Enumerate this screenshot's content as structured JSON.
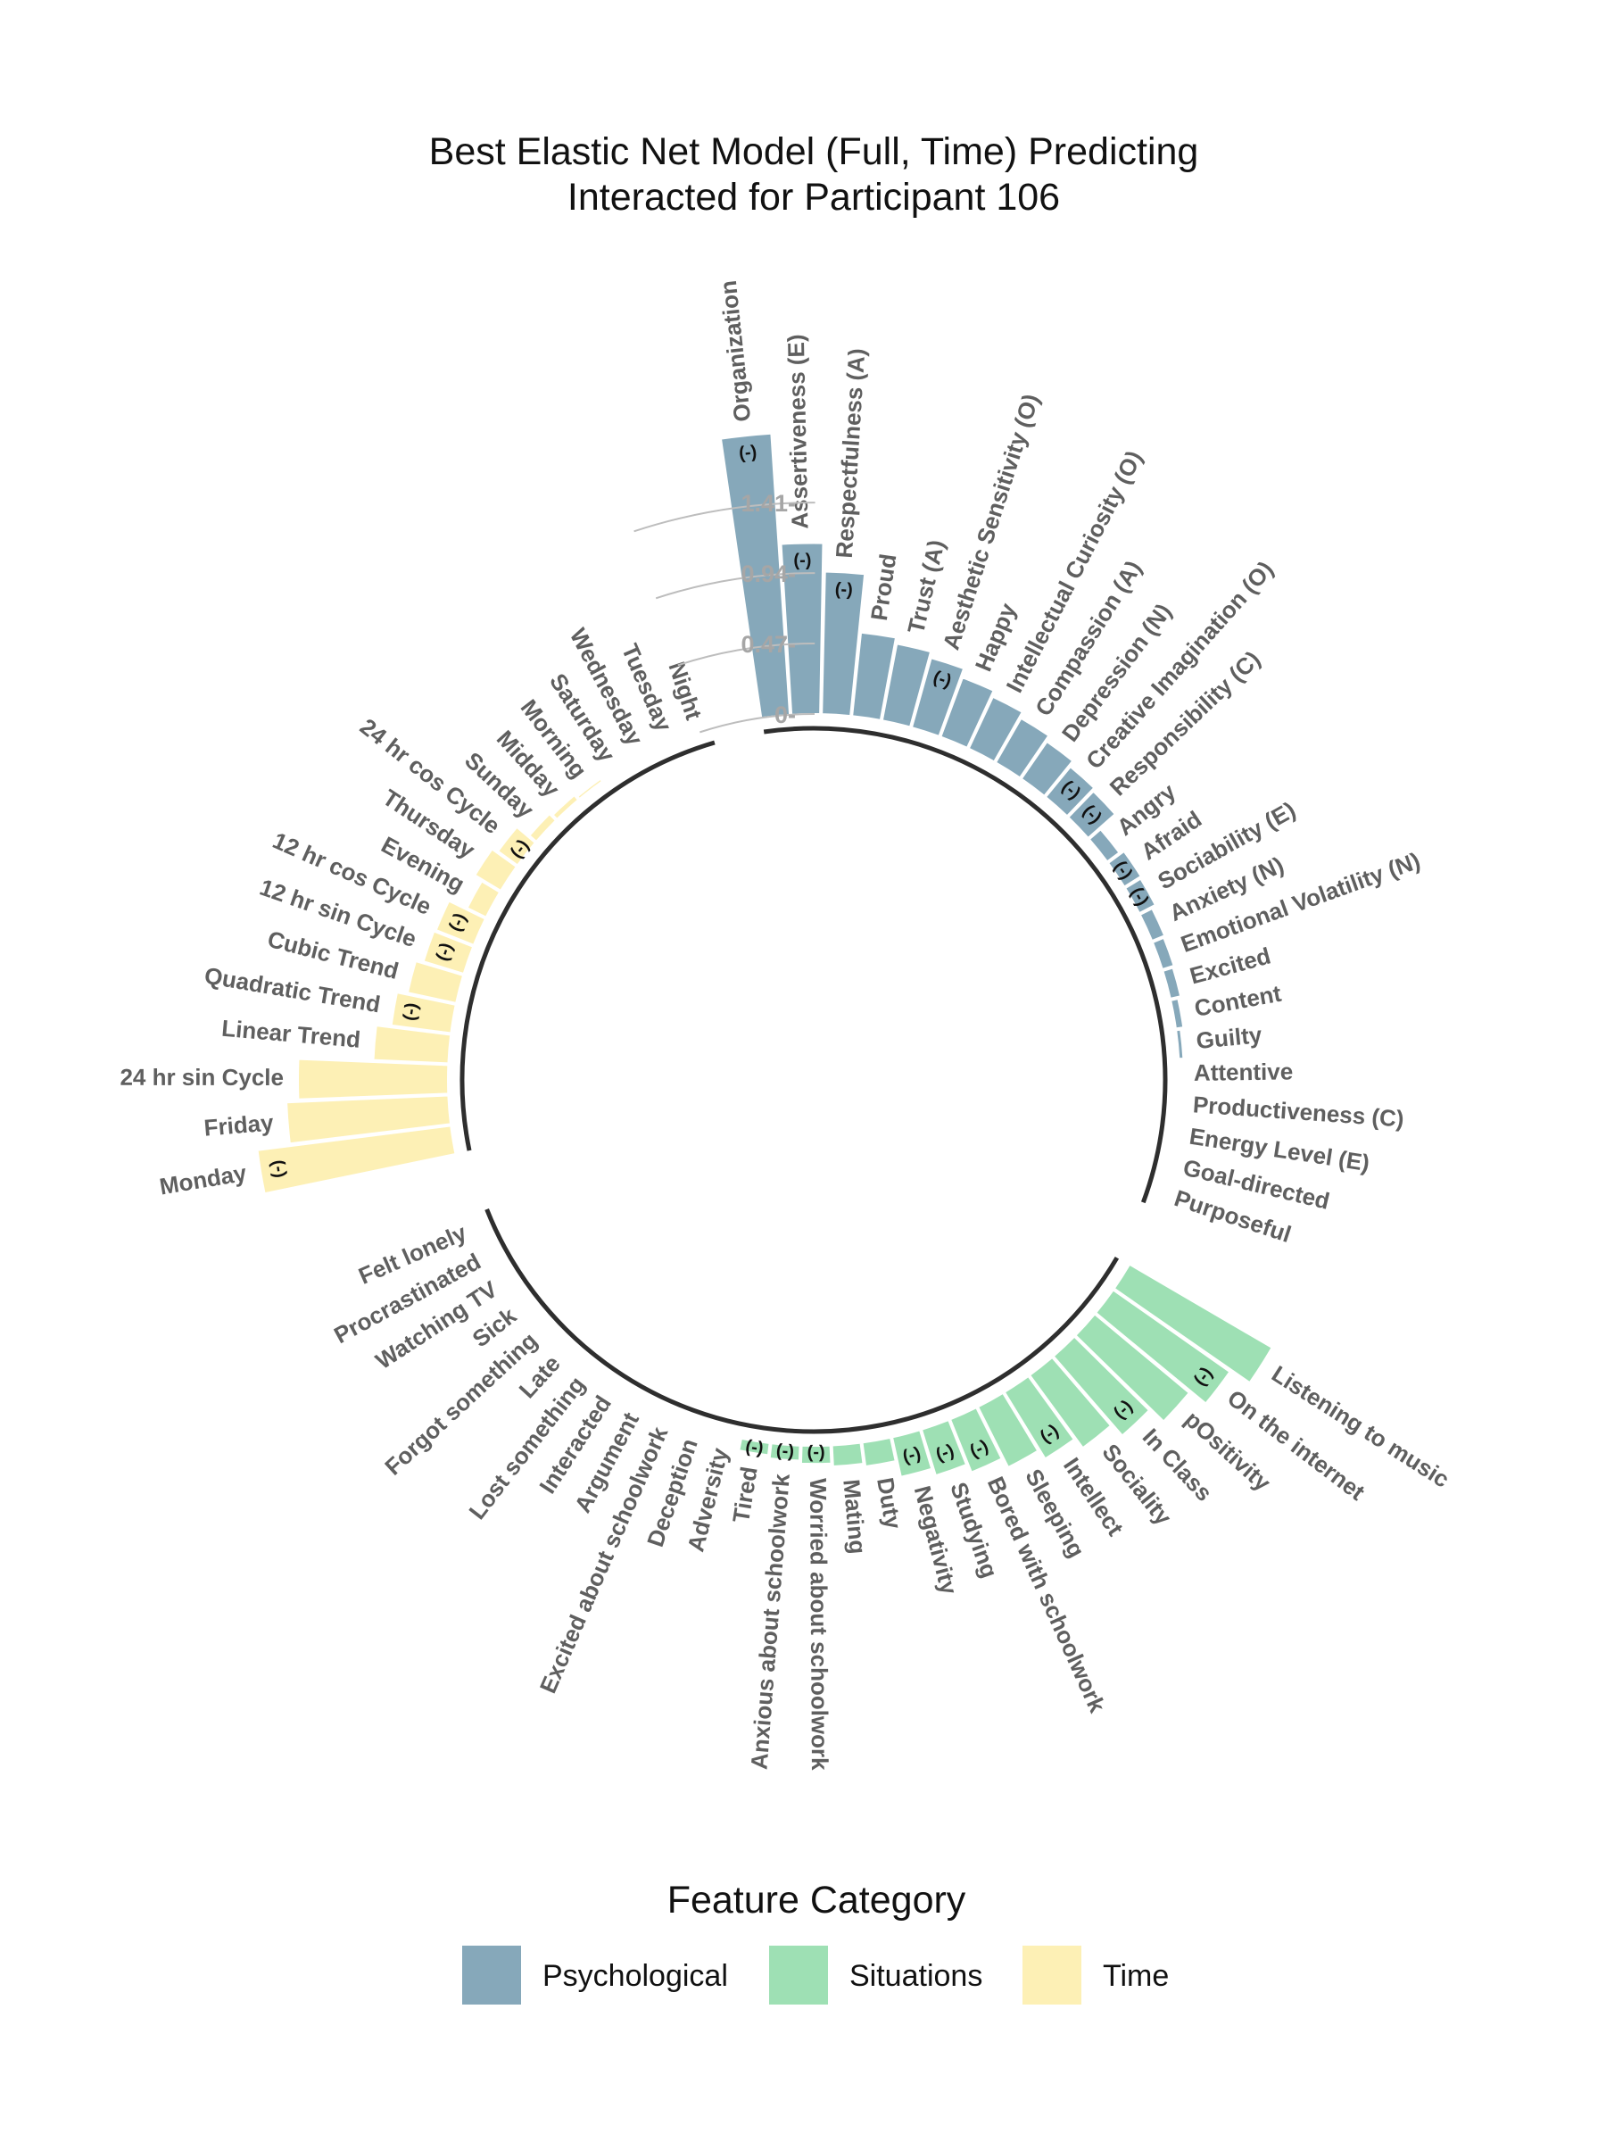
{
  "chart_data": {
    "type": "bar",
    "layout": "circular",
    "title_lines": [
      "Best Elastic Net Model (Full, Time) Predicting",
      "Interacted for Participant 106"
    ],
    "radial_ticks": [
      "0-",
      "0.47-",
      "0.94-",
      "1.41-"
    ],
    "radial_tick_values": [
      0,
      0.47,
      0.94,
      1.41
    ],
    "negative_marker": "(-)",
    "legend": {
      "title": "Feature Category",
      "position": "bottom",
      "items": [
        {
          "name": "Psychological",
          "color": "#86a8ba"
        },
        {
          "name": "Situations",
          "color": "#9ee0b4"
        },
        {
          "name": "Time",
          "color": "#fdf0b5"
        }
      ]
    },
    "groups": [
      {
        "category": "Psychological",
        "color": "#86a8ba",
        "bars": [
          {
            "label": "Organization",
            "value": 1.88,
            "negative": true
          },
          {
            "label": "Assertiveness (E)",
            "value": 1.14,
            "negative": true
          },
          {
            "label": "Respectfulness (A)",
            "value": 0.95,
            "negative": true
          },
          {
            "label": "Proud",
            "value": 0.56,
            "negative": false
          },
          {
            "label": "Trust (A)",
            "value": 0.52,
            "negative": false
          },
          {
            "label": "Aesthetic Sensitivity (O)",
            "value": 0.48,
            "negative": true
          },
          {
            "label": "Happy",
            "value": 0.42,
            "negative": false
          },
          {
            "label": "Intellectual Curiosity (O)",
            "value": 0.38,
            "negative": false
          },
          {
            "label": "Compassion (A)",
            "value": 0.34,
            "negative": false
          },
          {
            "label": "Depression (N)",
            "value": 0.3,
            "negative": false
          },
          {
            "label": "Creative Imagination (O)",
            "value": 0.26,
            "negative": true
          },
          {
            "label": "Responsibility (C)",
            "value": 0.24,
            "negative": true
          },
          {
            "label": "Angry",
            "value": 0.1,
            "negative": false
          },
          {
            "label": "Afraid",
            "value": 0.13,
            "negative": true
          },
          {
            "label": "Sociability (E)",
            "value": 0.12,
            "negative": true
          },
          {
            "label": "Anxiety (N)",
            "value": 0.09,
            "negative": false
          },
          {
            "label": "Emotional Volatility (N)",
            "value": 0.08,
            "negative": false
          },
          {
            "label": "Excited",
            "value": 0.07,
            "negative": false
          },
          {
            "label": "Content",
            "value": 0.05,
            "negative": false
          },
          {
            "label": "Guilty",
            "value": 0.03,
            "negative": false
          },
          {
            "label": "Attentive",
            "value": 0.0,
            "negative": false
          },
          {
            "label": "Productiveness (C)",
            "value": 0.0,
            "negative": false
          },
          {
            "label": "Energy Level (E)",
            "value": 0.0,
            "negative": false
          },
          {
            "label": "Goal-directed",
            "value": 0.0,
            "negative": false
          },
          {
            "label": "Purposeful",
            "value": 0.0,
            "negative": false
          }
        ]
      },
      {
        "category": "Situations",
        "color": "#9ee0b4",
        "bars": [
          {
            "label": "Listening to music",
            "value": 1.1,
            "negative": false
          },
          {
            "label": "On the internet",
            "value": 0.95,
            "negative": true
          },
          {
            "label": "pOsitivity",
            "value": 0.82,
            "negative": false
          },
          {
            "label": "In Class",
            "value": 0.7,
            "negative": true
          },
          {
            "label": "Sociality",
            "value": 0.6,
            "negative": false
          },
          {
            "label": "Intellect",
            "value": 0.52,
            "negative": true
          },
          {
            "label": "Sleeping",
            "value": 0.45,
            "negative": false
          },
          {
            "label": "Bored with schoolwork",
            "value": 0.38,
            "negative": true
          },
          {
            "label": "Studying",
            "value": 0.32,
            "negative": true
          },
          {
            "label": "Negativity",
            "value": 0.27,
            "negative": true
          },
          {
            "label": "Duty",
            "value": 0.16,
            "negative": false
          },
          {
            "label": "Mating",
            "value": 0.14,
            "negative": false
          },
          {
            "label": "Worried about schoolwork",
            "value": 0.12,
            "negative": true
          },
          {
            "label": "Anxious about schoolwork",
            "value": 0.1,
            "negative": true
          },
          {
            "label": "Tired",
            "value": 0.08,
            "negative": true
          },
          {
            "label": "Adversity",
            "value": 0.0,
            "negative": false
          },
          {
            "label": "Deception",
            "value": 0.0,
            "negative": false
          },
          {
            "label": "Excited about schoolwork",
            "value": 0.0,
            "negative": false
          },
          {
            "label": "Argument",
            "value": 0.0,
            "negative": false
          },
          {
            "label": "Interacted",
            "value": 0.0,
            "negative": false
          },
          {
            "label": "Lost something",
            "value": 0.0,
            "negative": false
          },
          {
            "label": "Late",
            "value": 0.0,
            "negative": false
          },
          {
            "label": "Forgot something",
            "value": 0.0,
            "negative": false
          },
          {
            "label": "Sick",
            "value": 0.0,
            "negative": false
          },
          {
            "label": "Watching TV",
            "value": 0.0,
            "negative": false
          },
          {
            "label": "Procrastinated",
            "value": 0.0,
            "negative": false
          },
          {
            "label": "Felt lonely",
            "value": 0.0,
            "negative": false
          }
        ]
      },
      {
        "category": "Time",
        "color": "#fdf0b5",
        "bars": [
          {
            "label": "Monday",
            "value": 1.3,
            "negative": true
          },
          {
            "label": "Friday",
            "value": 1.08,
            "negative": false
          },
          {
            "label": "24 hr sin Cycle",
            "value": 1.0,
            "negative": false
          },
          {
            "label": "Linear Trend",
            "value": 0.5,
            "negative": false
          },
          {
            "label": "Quadratic Trend",
            "value": 0.4,
            "negative": true
          },
          {
            "label": "Cubic Trend",
            "value": 0.33,
            "negative": false
          },
          {
            "label": "12 hr sin Cycle",
            "value": 0.28,
            "negative": true
          },
          {
            "label": "12 hr cos Cycle",
            "value": 0.27,
            "negative": true
          },
          {
            "label": "Evening",
            "value": 0.14,
            "negative": false
          },
          {
            "label": "Thursday",
            "value": 0.2,
            "negative": false
          },
          {
            "label": "24 hr cos Cycle",
            "value": 0.16,
            "negative": true
          },
          {
            "label": "Sunday",
            "value": 0.06,
            "negative": false
          },
          {
            "label": "Midday",
            "value": 0.04,
            "negative": false
          },
          {
            "label": "Morning",
            "value": 0.02,
            "negative": false
          },
          {
            "label": "Saturday",
            "value": 0.0,
            "negative": false
          },
          {
            "label": "Wednesday",
            "value": 0.0,
            "negative": false
          },
          {
            "label": "Tuesday",
            "value": 0.0,
            "negative": false
          },
          {
            "label": "Night",
            "value": 0.0,
            "negative": false
          }
        ]
      }
    ]
  }
}
